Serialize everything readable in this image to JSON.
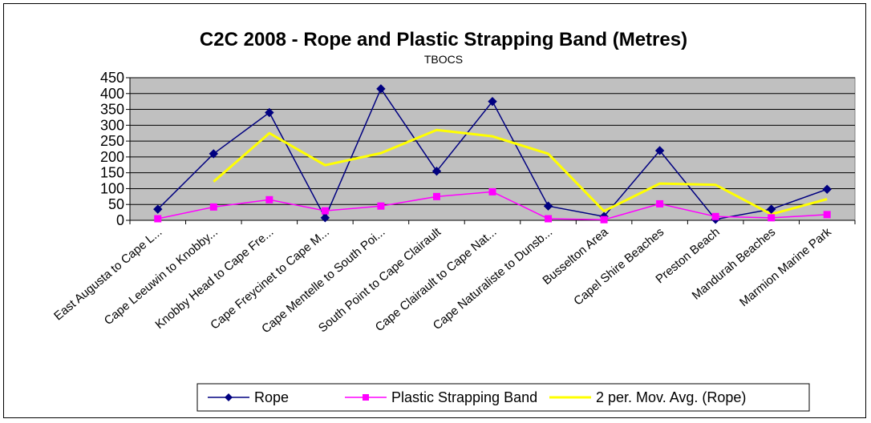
{
  "chart_data": {
    "type": "line",
    "title": "C2C 2008 - Rope and Plastic Strapping Band (Metres)",
    "subtitle": "TBOCS",
    "ylim": [
      0,
      450
    ],
    "yticks": [
      "0",
      "50",
      "100",
      "150",
      "200",
      "250",
      "300",
      "350",
      "400",
      "450"
    ],
    "categories": [
      "East Augusta to Cape L...",
      "Cape Leeuwin to Knobby...",
      "Knobby Head to Cape Fre...",
      "Cape Freycinet to Cape M...",
      "Cape Mentelle to South Poi...",
      "South Point to Cape Clairault",
      "Cape Clairault to Cape Nat...",
      "Cape Naturaliste to Dunsb...",
      "Busselton Area",
      "Capel Shire Beaches",
      "Preston Beach",
      "Mandurah Beaches",
      "Marmion Marine Park"
    ],
    "series": [
      {
        "name": "Rope",
        "color": "#000080",
        "marker": "diamond",
        "values": [
          35,
          210,
          340,
          8,
          415,
          155,
          375,
          45,
          12,
          220,
          3,
          35,
          98
        ]
      },
      {
        "name": "Plastic Strapping Band",
        "color": "#ff00ff",
        "marker": "square",
        "values": [
          5,
          42,
          65,
          30,
          45,
          75,
          90,
          5,
          2,
          52,
          12,
          8,
          18
        ]
      },
      {
        "name": "2 per. Mov. Avg. (Rope)",
        "color": "#ffff00",
        "marker": "none",
        "values": [
          null,
          122,
          275,
          174,
          212,
          285,
          265,
          210,
          29,
          116,
          112,
          19,
          67
        ]
      }
    ],
    "grid": true,
    "plot_background": "#c0c0c0",
    "legend": "bottom"
  }
}
